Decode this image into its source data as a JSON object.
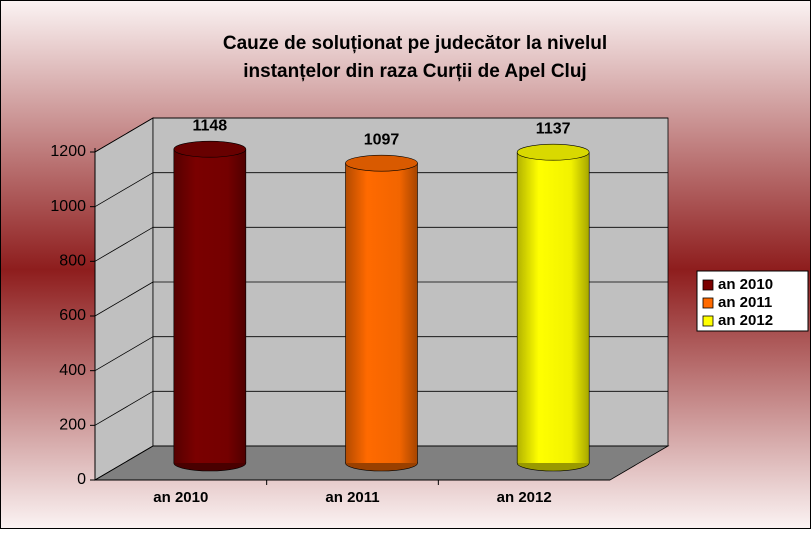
{
  "chart_data": {
    "type": "cylinder",
    "title": [
      "Cauze de soluționat pe judecător la nivelul",
      "instanțelor din raza Curții de Apel Cluj"
    ],
    "categories": [
      "an 2010",
      "an 2011",
      "an 2012"
    ],
    "values": [
      1148,
      1097,
      1137
    ],
    "colors": [
      "#7a0000",
      "#ff6a00",
      "#ffff00"
    ],
    "ylim": [
      0,
      1200
    ],
    "yticks": [
      0,
      200,
      400,
      600,
      800,
      1000,
      1200
    ],
    "grid": true,
    "legend": "right"
  }
}
